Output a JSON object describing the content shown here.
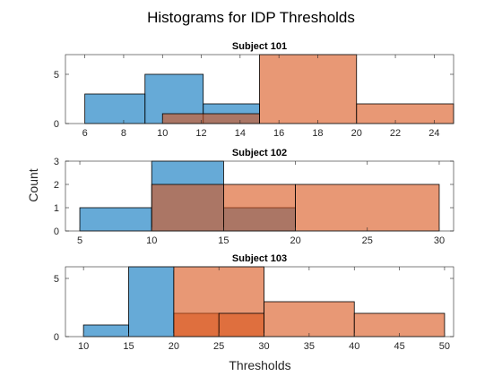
{
  "figure": {
    "title": "Histograms for IDP Thresholds",
    "xlabel": "Thresholds",
    "ylabel": "Count"
  },
  "colors": {
    "series1": "#0072BD",
    "series2": "#D95319",
    "face_alpha": 0.6,
    "edge": "#000000",
    "axis": "#262626",
    "background": "#ffffff"
  },
  "chart_data": [
    {
      "type": "bar",
      "title": "Subject 101",
      "xlim": [
        5,
        25
      ],
      "ylim": [
        0,
        7
      ],
      "xticks": [
        6,
        8,
        10,
        12,
        14,
        16,
        18,
        20,
        22,
        24
      ],
      "yticks": [
        0,
        5
      ],
      "series": [
        {
          "bins": [
            [
              6,
              9.1,
              3
            ],
            [
              9.1,
              12.1,
              5
            ],
            [
              12.1,
              15,
              2
            ]
          ]
        },
        {
          "bins": [
            [
              10,
              15,
              1
            ],
            [
              15,
              20,
              7
            ],
            [
              20,
              25,
              2
            ]
          ]
        }
      ]
    },
    {
      "type": "bar",
      "title": "Subject 102",
      "xlim": [
        4,
        31
      ],
      "ylim": [
        0,
        3
      ],
      "xticks": [
        5,
        10,
        15,
        20,
        25,
        30
      ],
      "yticks": [
        0,
        1,
        2,
        3
      ],
      "series": [
        {
          "bins": [
            [
              5,
              10,
              1
            ],
            [
              10,
              15,
              3
            ],
            [
              15,
              20,
              1
            ]
          ]
        },
        {
          "bins": [
            [
              10,
              15,
              2
            ],
            [
              15,
              20,
              2
            ],
            [
              20,
              30,
              2
            ]
          ]
        }
      ]
    },
    {
      "type": "bar",
      "title": "Subject 103",
      "xlim": [
        8,
        51
      ],
      "ylim": [
        0,
        6
      ],
      "xticks": [
        10,
        15,
        20,
        25,
        30,
        35,
        40,
        45,
        50
      ],
      "yticks": [
        0,
        5
      ],
      "series": [
        {
          "bins": [
            [
              10,
              15,
              1
            ],
            [
              15,
              20,
              6
            ]
          ]
        },
        {
          "bins": [
            [
              20,
              25,
              2
            ],
            [
              20,
              30,
              6
            ],
            [
              25,
              30,
              2
            ],
            [
              30,
              40,
              3
            ],
            [
              40,
              50,
              2
            ]
          ]
        }
      ]
    }
  ]
}
